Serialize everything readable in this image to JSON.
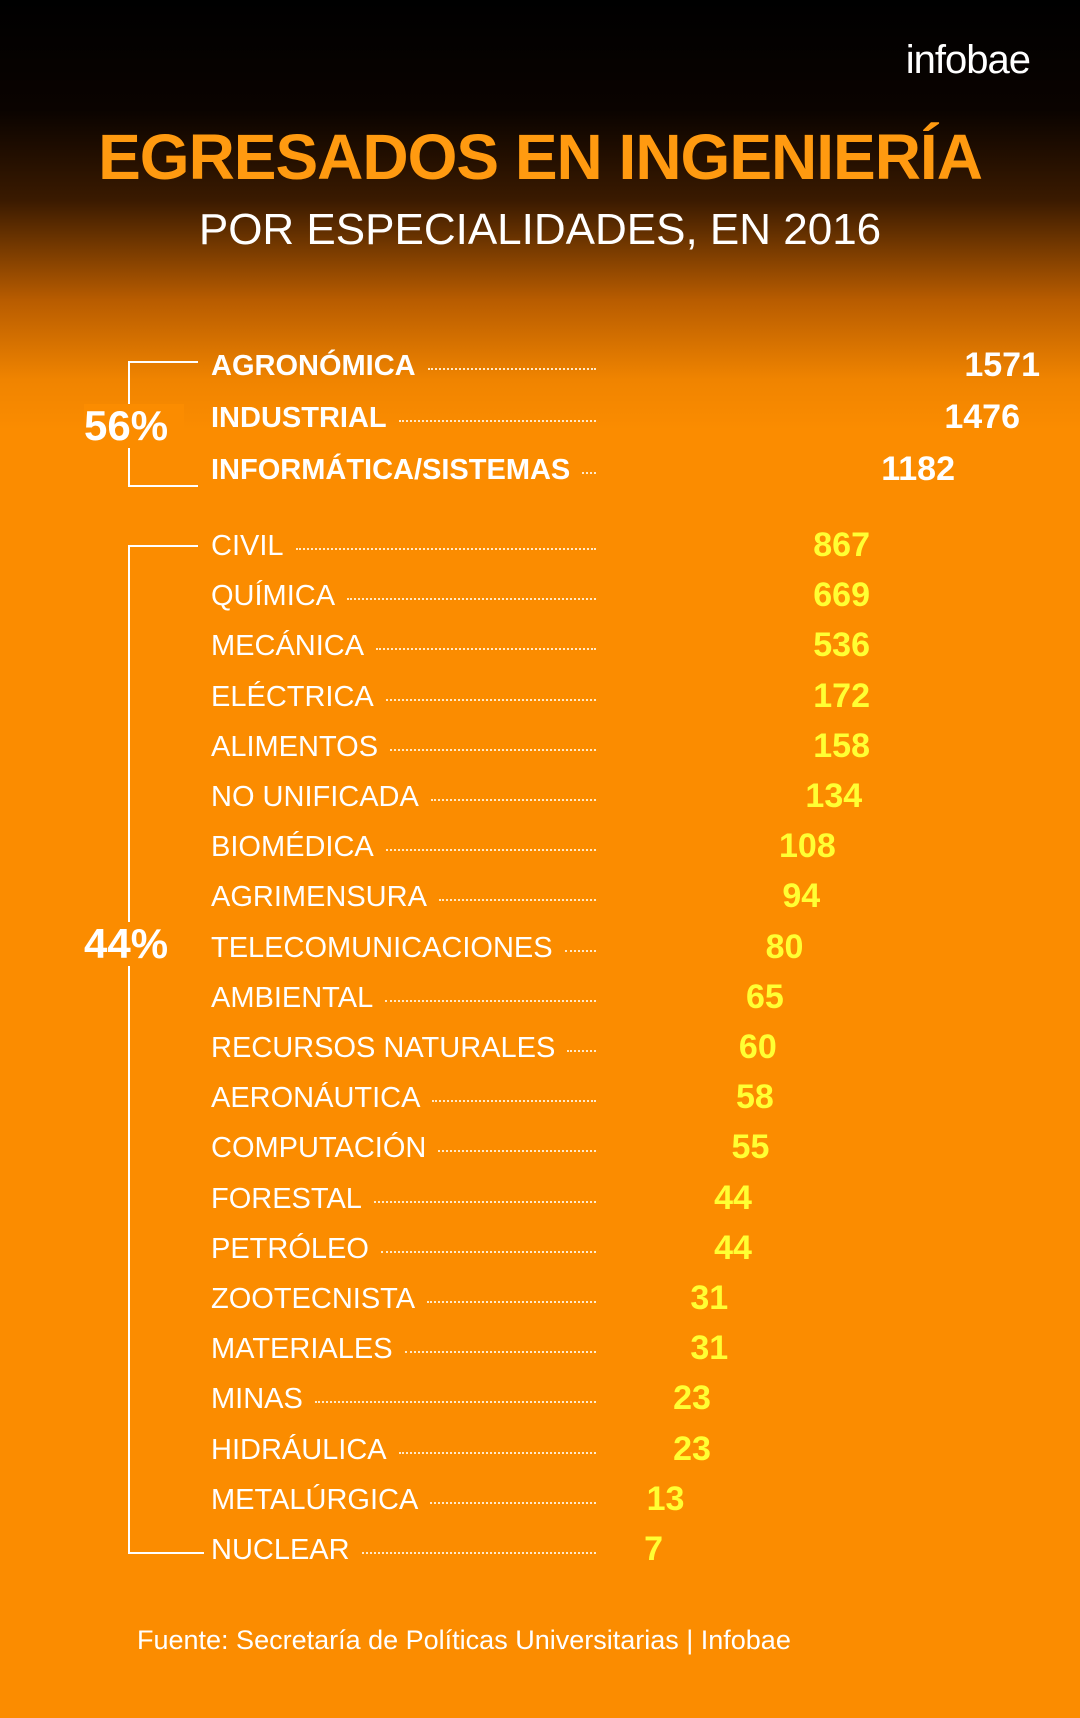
{
  "brand": "infobae",
  "title": "EGRESADOS EN INGENIERÍA",
  "subtitle": "POR ESPECIALIDADES, EN 2016",
  "groups": [
    {
      "label": "56%"
    },
    {
      "label": "44%"
    }
  ],
  "source": "Fuente: Secretaría de Políticas Universitarias | Infobae",
  "colors": {
    "background": "#fb8c00",
    "title": "#ff9a10",
    "top_values": "#ffffff",
    "other_values": "#ffff33"
  },
  "chart_data": {
    "type": "table",
    "title": "EGRESADOS EN INGENIERÍA",
    "subtitle": "POR ESPECIALIDADES, EN 2016",
    "categories": [
      "AGRONÓMICA",
      "INDUSTRIAL",
      "INFORMÁTICA/SISTEMAS",
      "CIVIL",
      "QUÍMICA",
      "MECÁNICA",
      "ELÉCTRICA",
      "ALIMENTOS",
      "NO UNIFICADA",
      "BIOMÉDICA",
      "AGRIMENSURA",
      "TELECOMUNICACIONES",
      "AMBIENTAL",
      "RECURSOS NATURALES",
      "AERONÁUTICA",
      "COMPUTACIÓN",
      "FORESTAL",
      "PETRÓLEO",
      "ZOOTECNISTA",
      "MATERIALES",
      "MINAS",
      "HIDRÁULICA",
      "METALÚRGICA",
      "NUCLEAR"
    ],
    "values": [
      1571,
      1476,
      1182,
      867,
      669,
      536,
      172,
      158,
      134,
      108,
      94,
      80,
      65,
      60,
      58,
      55,
      44,
      44,
      31,
      31,
      23,
      23,
      13,
      7
    ],
    "groups": [
      {
        "label": "56%",
        "members": [
          "AGRONÓMICA",
          "INDUSTRIAL",
          "INFORMÁTICA/SISTEMAS"
        ]
      },
      {
        "label": "44%",
        "members": [
          "CIVIL",
          "QUÍMICA",
          "MECÁNICA",
          "ELÉCTRICA",
          "ALIMENTOS",
          "NO UNIFICADA",
          "BIOMÉDICA",
          "AGRIMENSURA",
          "TELECOMUNICACIONES",
          "AMBIENTAL",
          "RECURSOS NATURALES",
          "AERONÁUTICA",
          "COMPUTACIÓN",
          "FORESTAL",
          "PETRÓLEO",
          "ZOOTECNISTA",
          "MATERIALES",
          "MINAS",
          "HIDRÁULICA",
          "METALÚRGICA",
          "NUCLEAR"
        ]
      }
    ]
  }
}
